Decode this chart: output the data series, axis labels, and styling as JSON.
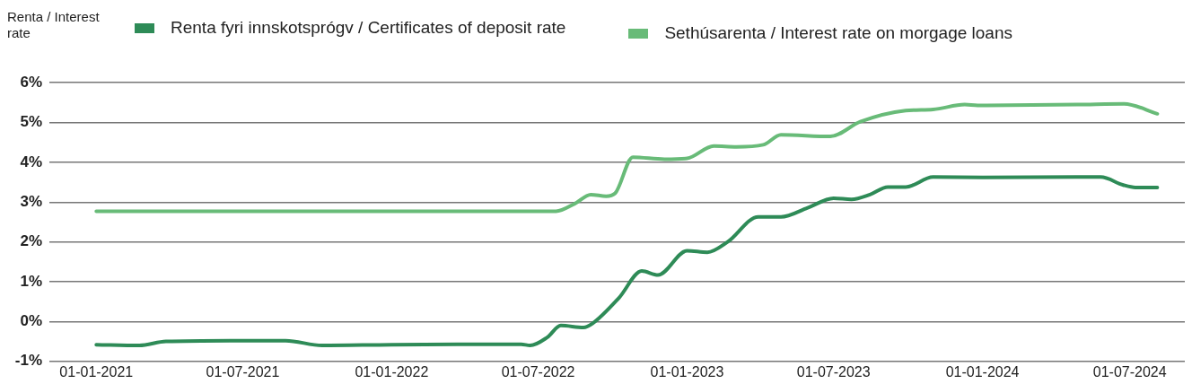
{
  "chart_data": {
    "type": "line",
    "ylabel": "Renta / Interest rate",
    "xlim": [
      "2020-11-04",
      "2024-09-07"
    ],
    "xticks": [
      {
        "value": "2021-01-01",
        "label": "01-01-2021"
      },
      {
        "value": "2021-07-01",
        "label": "01-07-2021"
      },
      {
        "value": "2022-01-01",
        "label": "01-01-2022"
      },
      {
        "value": "2022-07-01",
        "label": "01-07-2022"
      },
      {
        "value": "2023-01-01",
        "label": "01-01-2023"
      },
      {
        "value": "2023-07-01",
        "label": "01-07-2023"
      },
      {
        "value": "2024-01-01",
        "label": "01-01-2024"
      },
      {
        "value": "2024-07-01",
        "label": "01-07-2024"
      }
    ],
    "ylim": [
      -1,
      6
    ],
    "yticks": [
      {
        "value": -1,
        "label": "-1%"
      },
      {
        "value": 0,
        "label": "0%"
      },
      {
        "value": 1,
        "label": "1%"
      },
      {
        "value": 2,
        "label": "2%"
      },
      {
        "value": 3,
        "label": "3%"
      },
      {
        "value": 4,
        "label": "4%"
      },
      {
        "value": 5,
        "label": "5%"
      },
      {
        "value": 6,
        "label": "6%"
      }
    ],
    "grid": "y",
    "legend": "top",
    "marker": "none",
    "line_style": "solid",
    "series": [
      {
        "name": "Renta fyri innskotsprógv / Certificates of deposit rate",
        "color": "#2e8b57",
        "x": [
          "2021-01-01",
          "2021-02-23",
          "2021-03-28",
          "2021-07-01",
          "2021-08-23",
          "2021-10-07",
          "2022-01-01",
          "2022-06-10",
          "2022-06-21",
          "2022-07-12",
          "2022-07-29",
          "2022-08-26",
          "2022-09-06",
          "2022-10-09",
          "2022-11-06",
          "2022-11-26",
          "2023-01-01",
          "2023-01-26",
          "2023-02-20",
          "2023-03-30",
          "2023-04-27",
          "2023-05-30",
          "2023-07-01",
          "2023-07-23",
          "2023-08-15",
          "2023-09-06",
          "2023-09-28",
          "2023-11-01",
          "2024-01-01",
          "2024-04-27",
          "2024-05-26",
          "2024-06-23",
          "2024-07-08",
          "2024-08-04"
        ],
        "values": [
          -0.58,
          -0.6,
          -0.5,
          -0.48,
          -0.48,
          -0.6,
          -0.58,
          -0.57,
          -0.6,
          -0.4,
          -0.1,
          -0.15,
          -0.05,
          0.6,
          1.27,
          1.17,
          1.78,
          1.74,
          2.0,
          2.63,
          2.63,
          2.86,
          3.1,
          3.07,
          3.19,
          3.38,
          3.38,
          3.63,
          3.62,
          3.63,
          3.63,
          3.43,
          3.37,
          3.37
        ]
      },
      {
        "name": "Sethúsarenta / Interest rate on morgage loans",
        "color": "#68bb78",
        "x": [
          "2021-01-01",
          "2022-06-10",
          "2022-07-23",
          "2022-08-15",
          "2022-09-04",
          "2022-09-23",
          "2022-10-04",
          "2022-10-26",
          "2022-12-04",
          "2023-01-01",
          "2023-02-03",
          "2023-03-03",
          "2023-04-05",
          "2023-04-27",
          "2023-06-27",
          "2023-08-03",
          "2023-09-28",
          "2023-11-01",
          "2023-12-10",
          "2023-12-26",
          "2024-04-27",
          "2024-06-24",
          "2024-08-04"
        ],
        "values": [
          2.77,
          2.77,
          2.77,
          2.96,
          3.19,
          3.15,
          3.22,
          4.13,
          4.08,
          4.1,
          4.41,
          4.39,
          4.44,
          4.69,
          4.65,
          5.02,
          5.3,
          5.33,
          5.45,
          5.43,
          5.45,
          5.47,
          5.22
        ]
      }
    ]
  }
}
